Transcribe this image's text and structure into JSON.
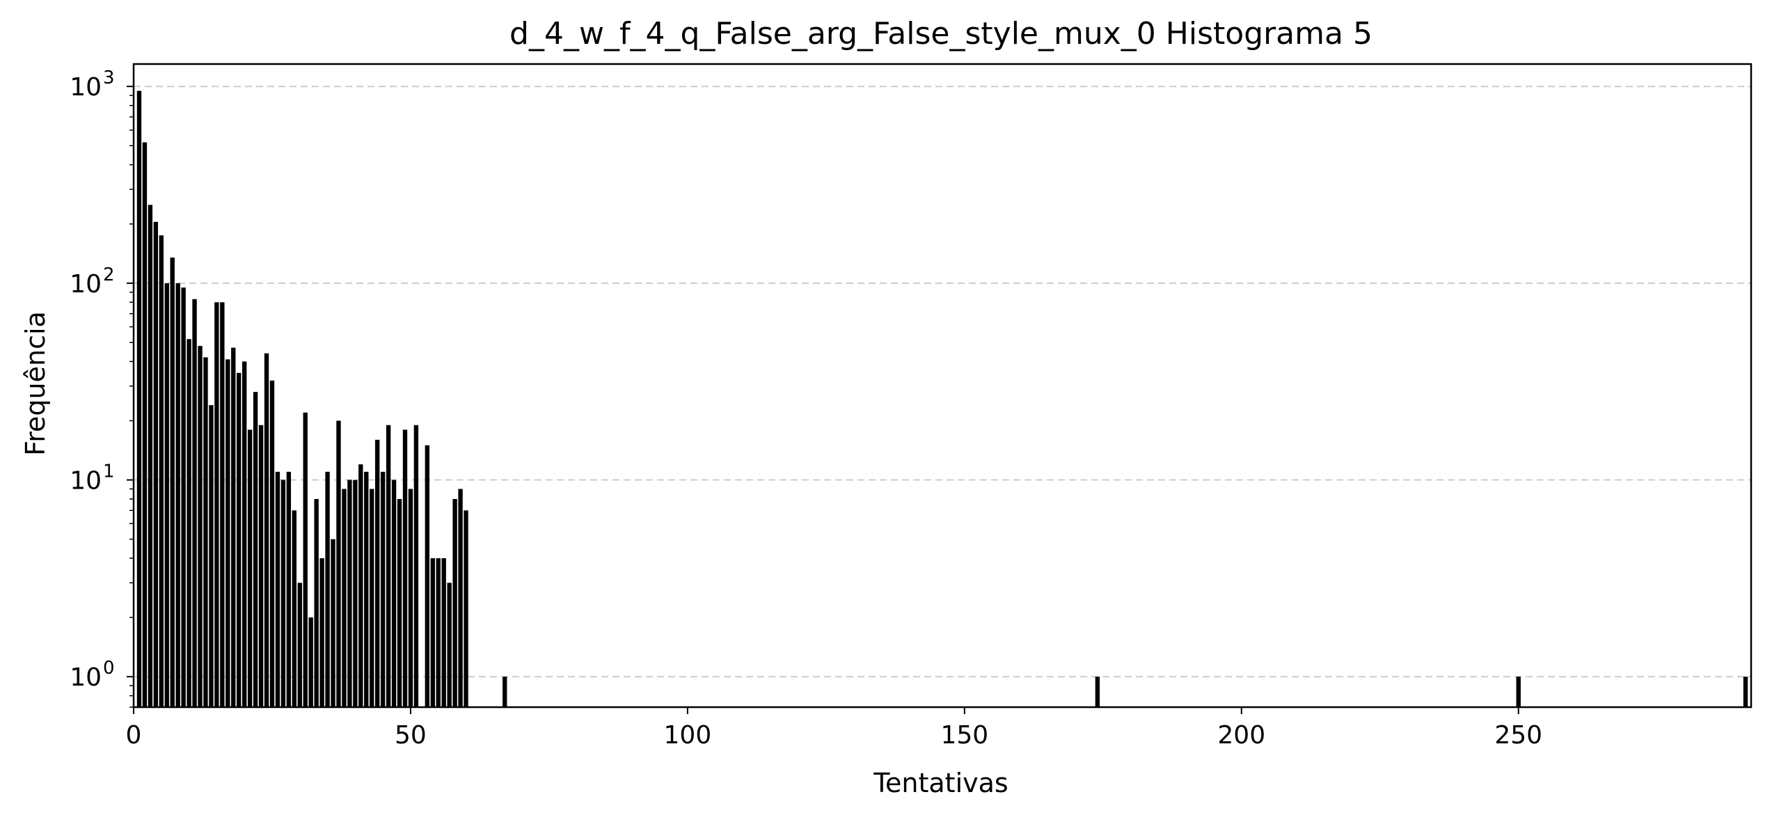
{
  "chart_data": {
    "type": "bar",
    "title": "d_4_w_f_4_q_False_arg_False_style_mux_0 Histograma 5",
    "xlabel": "Tentativas",
    "ylabel": "Frequência",
    "x_scale": "linear",
    "y_scale": "log",
    "xlim": [
      0,
      292
    ],
    "ylim": [
      0.7,
      1300
    ],
    "x_ticks": [
      0,
      50,
      100,
      150,
      200,
      250
    ],
    "y_ticks": [
      {
        "value": 1,
        "base": "10",
        "exp": "0"
      },
      {
        "value": 10,
        "base": "10",
        "exp": "1"
      },
      {
        "value": 100,
        "base": "10",
        "exp": "2"
      },
      {
        "value": 1000,
        "base": "10",
        "exp": "3"
      }
    ],
    "grid": {
      "axis": "y",
      "style": "dashed"
    },
    "bar_color": "#000000",
    "x": [
      1,
      2,
      3,
      4,
      5,
      6,
      7,
      8,
      9,
      10,
      11,
      12,
      13,
      14,
      15,
      16,
      17,
      18,
      19,
      20,
      21,
      22,
      23,
      24,
      25,
      26,
      27,
      28,
      29,
      30,
      31,
      32,
      33,
      34,
      35,
      36,
      37,
      38,
      39,
      40,
      41,
      42,
      43,
      44,
      45,
      46,
      47,
      48,
      49,
      50,
      51,
      52,
      53,
      54,
      55,
      56,
      57,
      58,
      59,
      60,
      61,
      62,
      63,
      67,
      174,
      250,
      291
    ],
    "values": [
      950,
      520,
      250,
      205,
      175,
      100,
      135,
      100,
      95,
      52,
      83,
      48,
      42,
      24,
      80,
      80,
      41,
      47,
      35,
      40,
      18,
      28,
      19,
      44,
      32,
      11,
      10,
      11,
      7,
      3,
      22,
      2,
      8,
      4,
      11,
      5,
      20,
      9,
      10,
      10,
      12,
      11,
      9,
      16,
      11,
      19,
      10,
      8,
      18,
      9,
      19,
      0,
      15,
      4,
      4,
      4,
      3,
      8,
      9,
      7,
      0,
      0,
      0,
      1,
      1,
      1,
      1
    ]
  }
}
